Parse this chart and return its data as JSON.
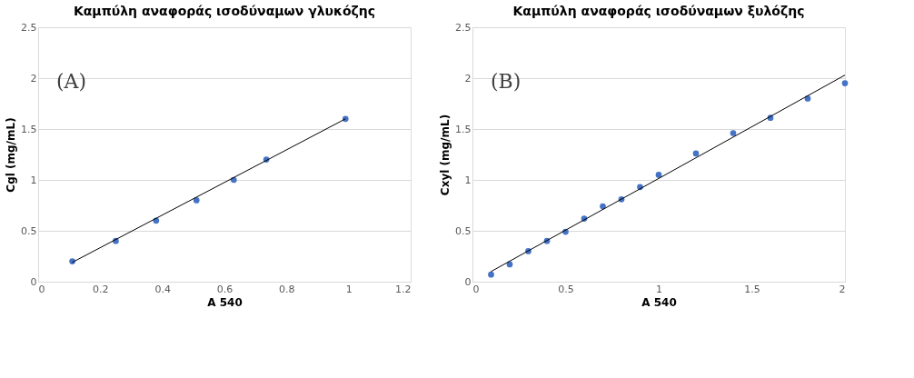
{
  "chart_data": [
    {
      "type": "scatter",
      "title": "Καμπύλη αναφοράς ισοδύναμων γλυκόζης",
      "xlabel": "A 540",
      "ylabel": "Cgl (mg/mL)",
      "annotations": [
        "(A)"
      ],
      "xlim": [
        0,
        1.2
      ],
      "xticks": [
        0,
        0.2,
        0.4,
        0.6,
        0.8,
        1,
        1.2
      ],
      "ylim": [
        0,
        2.5
      ],
      "yticks": [
        0,
        0.5,
        1,
        1.5,
        2,
        2.5
      ],
      "grid": "y",
      "marker": "circle",
      "series": [
        {
          "type": "scatter",
          "color": "#4472c4",
          "x": [
            0.11,
            0.25,
            0.38,
            0.51,
            0.63,
            0.735,
            0.99
          ],
          "values": [
            0.2,
            0.4,
            0.6,
            0.8,
            1.0,
            1.2,
            1.6
          ]
        },
        {
          "type": "line",
          "color": "#000000",
          "marker": "none",
          "x": [
            0.11,
            0.99
          ],
          "values": [
            0.19,
            1.6
          ]
        }
      ]
    },
    {
      "type": "scatter",
      "title": "Καμπύλη αναφοράς ισοδύναμων ξυλόζης",
      "xlabel": "A 540",
      "ylabel": "Cxyl (mg/mL)",
      "annotations": [
        "(B)"
      ],
      "xlim": [
        0,
        2
      ],
      "xticks": [
        0,
        0.5,
        1,
        1.5,
        2
      ],
      "ylim": [
        0,
        2.5
      ],
      "yticks": [
        0,
        0.5,
        1,
        1.5,
        2,
        2.5
      ],
      "grid": "y",
      "marker": "circle",
      "series": [
        {
          "type": "scatter",
          "color": "#4472c4",
          "x": [
            0.1,
            0.2,
            0.3,
            0.4,
            0.5,
            0.6,
            0.7,
            0.8,
            0.9,
            1.0,
            1.2,
            1.4,
            1.6,
            1.8,
            2.0
          ],
          "values": [
            0.07,
            0.17,
            0.3,
            0.4,
            0.49,
            0.62,
            0.74,
            0.81,
            0.93,
            1.05,
            1.26,
            1.46,
            1.61,
            1.8,
            1.95
          ]
        },
        {
          "type": "line",
          "color": "#000000",
          "marker": "none",
          "x": [
            0.1,
            2.0
          ],
          "values": [
            0.1,
            2.03
          ]
        }
      ]
    }
  ]
}
